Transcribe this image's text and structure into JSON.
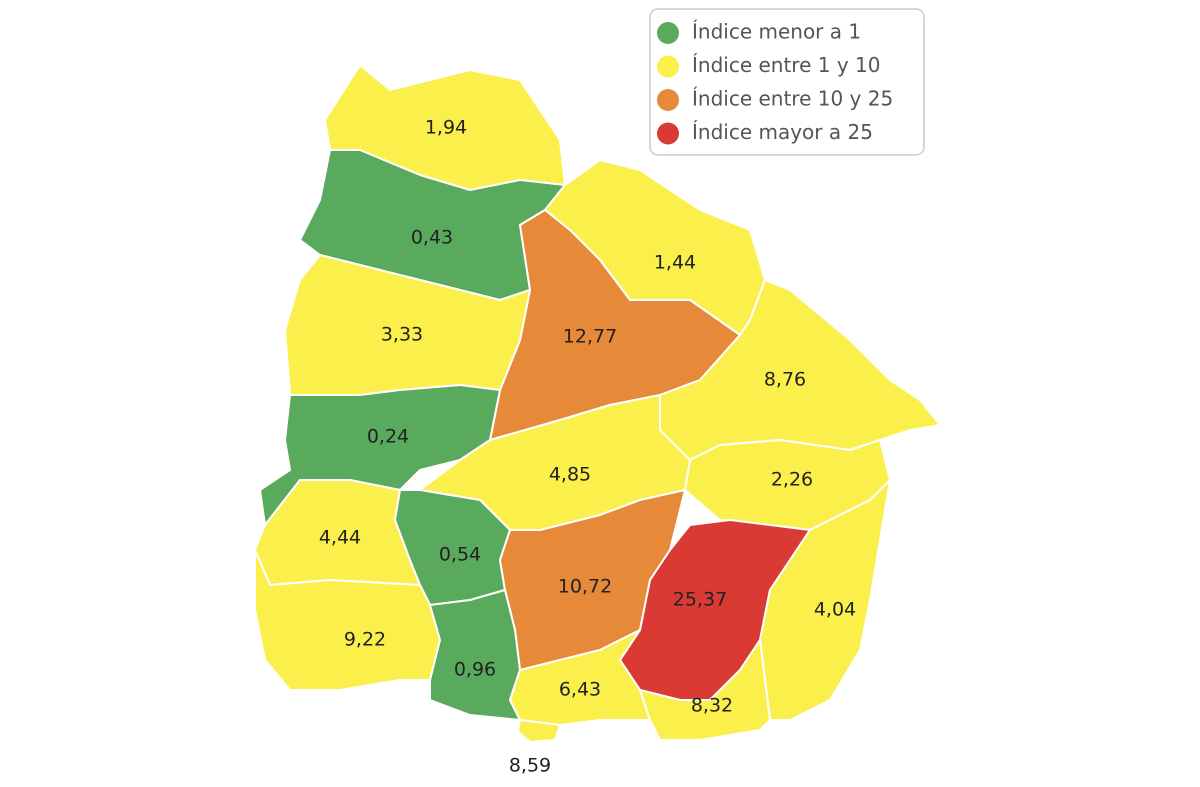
{
  "legend": [
    {
      "label": "Índice menor a 1",
      "color": "#5aaa5e"
    },
    {
      "label": "Índice entre 1 y 10",
      "color": "#fbef4b"
    },
    {
      "label": "Índice entre 10 y 25",
      "color": "#e68a3a"
    },
    {
      "label": "Índice mayor a 25",
      "color": "#d93a34"
    }
  ],
  "regions": [
    {
      "label": "1,94",
      "color": "#fbef4b"
    },
    {
      "label": "0,43",
      "color": "#5aaa5e"
    },
    {
      "label": "1,44",
      "color": "#fbef4b"
    },
    {
      "label": "12,77",
      "color": "#e68a3a"
    },
    {
      "label": "3,33",
      "color": "#fbef4b"
    },
    {
      "label": "0,24",
      "color": "#5aaa5e"
    },
    {
      "label": "8,76",
      "color": "#fbef4b"
    },
    {
      "label": "4,85",
      "color": "#fbef4b"
    },
    {
      "label": "2,26",
      "color": "#fbef4b"
    },
    {
      "label": "4,44",
      "color": "#fbef4b"
    },
    {
      "label": "0,54",
      "color": "#5aaa5e"
    },
    {
      "label": "10,72",
      "color": "#e68a3a"
    },
    {
      "label": "25,37",
      "color": "#d93a34"
    },
    {
      "label": "4,04",
      "color": "#fbef4b"
    },
    {
      "label": "9,22",
      "color": "#fbef4b"
    },
    {
      "label": "0,96",
      "color": "#5aaa5e"
    },
    {
      "label": "6,43",
      "color": "#fbef4b"
    },
    {
      "label": "8,32",
      "color": "#fbef4b"
    },
    {
      "label": "8,59",
      "color": "#fbef4b"
    }
  ]
}
